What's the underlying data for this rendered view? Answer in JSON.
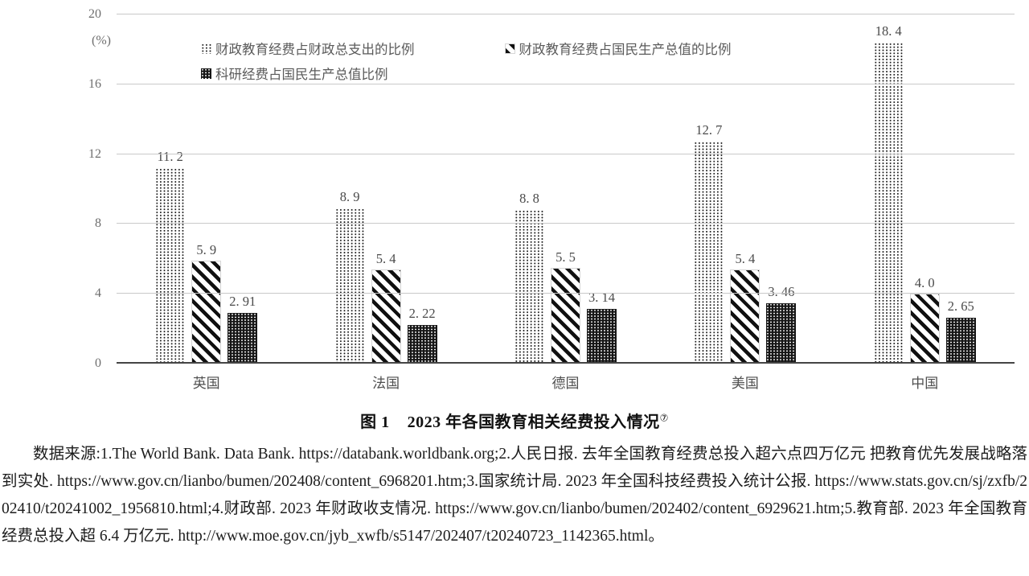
{
  "chart_data": {
    "type": "bar",
    "title": "2023 年各国教育相关经费投入情况",
    "unit_label": "(%)",
    "ylim": [
      0,
      20
    ],
    "yticks": [
      20,
      16,
      12,
      8,
      4,
      0
    ],
    "grid": true,
    "legend_position": "top-inside",
    "categories": [
      "英国",
      "法国",
      "德国",
      "美国",
      "中国"
    ],
    "series": [
      {
        "name": "财政教育经费占财政总支出的比例",
        "pattern": "light-dots",
        "values": [
          11.2,
          8.9,
          8.8,
          12.7,
          18.4
        ],
        "labels": [
          "11. 2",
          "8. 9",
          "8. 8",
          "12. 7",
          "18. 4"
        ]
      },
      {
        "name": "财政教育经费占国民生产总值的比例",
        "pattern": "diagonal-stripes",
        "values": [
          5.9,
          5.4,
          5.5,
          5.4,
          4.0
        ],
        "labels": [
          "5. 9",
          "5. 4",
          "5. 5",
          "5. 4",
          "4. 0"
        ]
      },
      {
        "name": "科研经费占国民生产总值比例",
        "pattern": "dark-dots",
        "values": [
          2.91,
          2.22,
          3.14,
          3.46,
          2.65
        ],
        "labels": [
          "2. 91",
          "2. 22",
          "3. 14",
          "3. 46",
          "2. 65"
        ]
      }
    ],
    "colors": {
      "gridline": "#c9c9c9",
      "axis_line": "#454545",
      "label_text": "#4a4a4a",
      "bar_dark": "#161616"
    }
  },
  "caption": {
    "figure_label": "图 1",
    "title": "2023 年各国教育相关经费投入情况",
    "superscript": "⑦"
  },
  "source": {
    "text": "数据来源:1.The World Bank. Data Bank. https://databank.worldbank.org;2.人民日报. 去年全国教育经费总投入超六点四万亿元 把教育优先发展战略落到实处. https://www.gov.cn/lianbo/bumen/202408/content_6968201.htm;3.国家统计局. 2023 年全国科技经费投入统计公报. https://www.stats.gov.cn/sj/zxfb/202410/t20241002_1956810.html;4.财政部. 2023 年财政收支情况. https://www.gov.cn/lianbo/bumen/202402/content_6929621.htm;5.教育部. 2023 年全国教育经费总投入超 6.4 万亿元. http://www.moe.gov.cn/jyb_xwfb/s5147/202407/t20240723_1142365.html。"
  }
}
